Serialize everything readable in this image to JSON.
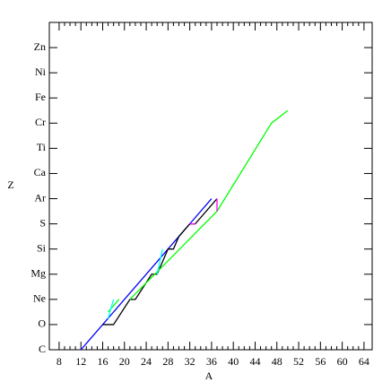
{
  "chart_data": {
    "type": "line",
    "xlabel": "A",
    "ylabel": "Z",
    "xlim": [
      6.2,
      65.5
    ],
    "xticks": [
      8,
      12,
      16,
      20,
      24,
      28,
      32,
      36,
      40,
      44,
      48,
      52,
      56,
      60,
      64
    ],
    "ylim": [
      6,
      32
    ],
    "yticks": [
      {
        "value": 6,
        "label": "C"
      },
      {
        "value": 8,
        "label": "O"
      },
      {
        "value": 10,
        "label": "Ne"
      },
      {
        "value": 12,
        "label": "Mg"
      },
      {
        "value": 14,
        "label": "Si"
      },
      {
        "value": 16,
        "label": "S"
      },
      {
        "value": 18,
        "label": "Ar"
      },
      {
        "value": 20,
        "label": "Ca"
      },
      {
        "value": 22,
        "label": "Ti"
      },
      {
        "value": 24,
        "label": "Cr"
      },
      {
        "value": 26,
        "label": "Fe"
      },
      {
        "value": 28,
        "label": "Ni"
      },
      {
        "value": 30,
        "label": "Zn"
      }
    ],
    "series": [
      {
        "color": "#0000ff",
        "x": [
          12,
          16,
          20,
          24,
          28,
          32,
          36
        ],
        "values": [
          6,
          8,
          10,
          12,
          14,
          16,
          18
        ]
      },
      {
        "color": "#000000",
        "x": [
          16,
          18,
          21,
          22,
          25,
          26,
          27,
          28,
          29,
          30,
          32,
          33,
          37
        ],
        "values": [
          8,
          8,
          10,
          10,
          12,
          12,
          13,
          14,
          14,
          15,
          16,
          16,
          18
        ]
      },
      {
        "color": "#00ff00",
        "x": [
          17,
          19,
          20,
          21,
          37,
          47,
          50
        ],
        "values": [
          9,
          10,
          null,
          10,
          17,
          24,
          25
        ]
      },
      {
        "color": "#00ffff",
        "x": [
          17,
          18,
          19,
          26,
          27
        ],
        "values": [
          8.5,
          10,
          null,
          12,
          14
        ]
      },
      {
        "color": "#ff00ff",
        "x": [
          32,
          33,
          34,
          37,
          37
        ],
        "values": [
          16,
          16,
          null,
          17,
          18
        ]
      }
    ]
  }
}
